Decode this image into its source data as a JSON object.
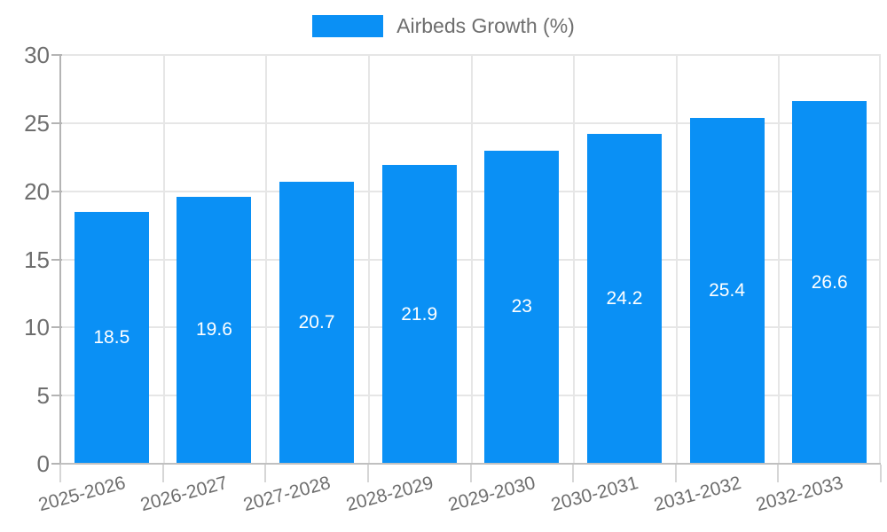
{
  "chart_data": {
    "type": "bar",
    "title": "",
    "series_name": "Airbeds Growth (%)",
    "categories": [
      "2025-2026",
      "2026-2027",
      "2027-2028",
      "2028-2029",
      "2029-2030",
      "2030-2031",
      "2031-2032",
      "2032-2033"
    ],
    "values": [
      18.5,
      19.6,
      20.7,
      21.9,
      23,
      24.2,
      25.4,
      26.6
    ],
    "value_labels": [
      "18.5",
      "19.6",
      "20.7",
      "21.9",
      "23",
      "24.2",
      "25.4",
      "26.6"
    ],
    "xlabel": "",
    "ylabel": "",
    "ylim": [
      0,
      30
    ],
    "yticks": [
      0,
      5,
      10,
      15,
      20,
      25,
      30
    ],
    "grid": true,
    "legend_position": "top",
    "bar_value_labels": "inside-center"
  },
  "colors": {
    "bar": "#0a90f5",
    "gridline": "#e6e6e6",
    "axis_line": "#b4b4b4",
    "x_tick": "#d6d6d6",
    "tick_label": "#6e6e6e",
    "legend_text": "#6e6e6e",
    "bar_value_text": "#ffffff",
    "background": "#ffffff"
  }
}
